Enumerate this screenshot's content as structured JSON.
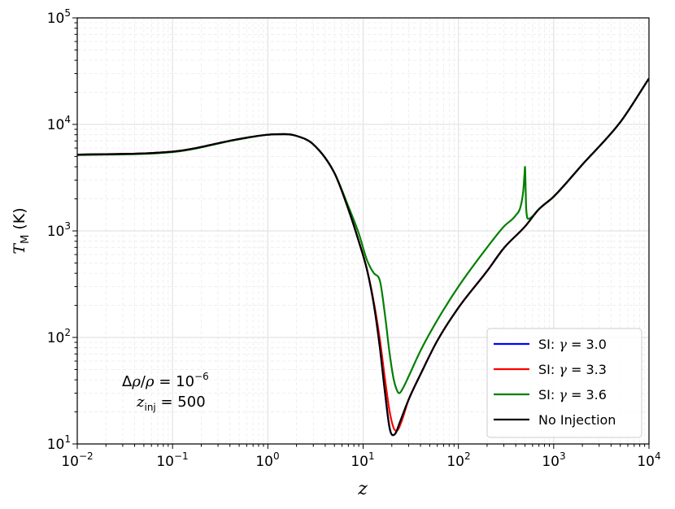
{
  "chart_data": {
    "type": "line",
    "title": "",
    "xlabel": "z",
    "ylabel": "T_M (K)",
    "x_scale": "log",
    "y_scale": "log",
    "xlim": [
      0.01,
      10000
    ],
    "ylim": [
      10,
      100000
    ],
    "grid": true,
    "legend_position": "lower-right",
    "x_tick_labels": [
      "10^-2",
      "10^-1",
      "10^0",
      "10^1",
      "10^2",
      "10^3",
      "10^4"
    ],
    "y_tick_labels": [
      "10^1",
      "10^2",
      "10^3",
      "10^4",
      "10^5"
    ],
    "annotations": [
      "Δρ/ρ = 10^-6",
      "z_inj = 500"
    ],
    "series": [
      {
        "name": "SI: γ = 3.0",
        "color": "#0000ff",
        "points": [
          [
            0.01,
            5200
          ],
          [
            0.1,
            5550
          ],
          [
            0.5,
            7300
          ],
          [
            1.0,
            8000
          ],
          [
            1.5,
            8100
          ],
          [
            2.0,
            7800
          ],
          [
            3.0,
            6500
          ],
          [
            5.0,
            3500
          ],
          [
            7.0,
            1600
          ],
          [
            9.0,
            800
          ],
          [
            11.0,
            430
          ],
          [
            13.0,
            200
          ],
          [
            15.0,
            80
          ],
          [
            17.0,
            30
          ],
          [
            19.0,
            14
          ],
          [
            20.5,
            12.1
          ],
          [
            22.0,
            12.7
          ],
          [
            24.0,
            15.5
          ],
          [
            30.0,
            26
          ],
          [
            40.0,
            45
          ],
          [
            60.0,
            93
          ],
          [
            100.0,
            190
          ],
          [
            200.0,
            420
          ],
          [
            300.0,
            690
          ],
          [
            500.0,
            1100
          ],
          [
            700.0,
            1600
          ],
          [
            1000.0,
            2100
          ],
          [
            2000.0,
            4200
          ],
          [
            5000.0,
            10500
          ],
          [
            10000.0,
            27000
          ]
        ]
      },
      {
        "name": "SI: γ = 3.3",
        "color": "#ff0000",
        "points": [
          [
            0.01,
            5200
          ],
          [
            0.1,
            5550
          ],
          [
            0.5,
            7300
          ],
          [
            1.0,
            8000
          ],
          [
            1.5,
            8100
          ],
          [
            2.0,
            7800
          ],
          [
            3.0,
            6500
          ],
          [
            5.0,
            3500
          ],
          [
            7.0,
            1600
          ],
          [
            9.0,
            800
          ],
          [
            11.0,
            430
          ],
          [
            13.0,
            210
          ],
          [
            15.0,
            95
          ],
          [
            17.0,
            40
          ],
          [
            19.0,
            20
          ],
          [
            21.0,
            14
          ],
          [
            22.5,
            13.3
          ],
          [
            25.0,
            15.8
          ],
          [
            30.0,
            26
          ],
          [
            40.0,
            45
          ],
          [
            60.0,
            93
          ],
          [
            100.0,
            190
          ],
          [
            200.0,
            420
          ],
          [
            300.0,
            690
          ],
          [
            500.0,
            1100
          ],
          [
            700.0,
            1600
          ],
          [
            1000.0,
            2100
          ],
          [
            2000.0,
            4200
          ],
          [
            5000.0,
            10500
          ],
          [
            10000.0,
            27000
          ]
        ]
      },
      {
        "name": "SI: γ = 3.6",
        "color": "#008000",
        "points": [
          [
            0.01,
            5150
          ],
          [
            0.1,
            5500
          ],
          [
            0.5,
            7250
          ],
          [
            1.0,
            8000
          ],
          [
            1.5,
            8100
          ],
          [
            2.0,
            7800
          ],
          [
            3.0,
            6500
          ],
          [
            5.0,
            3500
          ],
          [
            7.0,
            1700
          ],
          [
            9.0,
            950
          ],
          [
            11.0,
            530
          ],
          [
            13.0,
            400
          ],
          [
            15.0,
            340
          ],
          [
            17.0,
            160
          ],
          [
            19.0,
            70
          ],
          [
            21.0,
            40
          ],
          [
            23.0,
            31
          ],
          [
            24.0,
            30
          ],
          [
            26.0,
            33
          ],
          [
            30.0,
            43
          ],
          [
            40.0,
            75
          ],
          [
            60.0,
            145
          ],
          [
            100.0,
            300
          ],
          [
            200.0,
            700
          ],
          [
            300.0,
            1100
          ],
          [
            400.0,
            1400
          ],
          [
            450.0,
            1700
          ],
          [
            480.0,
            2400
          ],
          [
            495.0,
            3500
          ],
          [
            500.0,
            4000
          ],
          [
            505.0,
            3000
          ],
          [
            515.0,
            1600
          ],
          [
            540.0,
            1300
          ],
          [
            700.0,
            1600
          ],
          [
            1000.0,
            2100
          ],
          [
            2000.0,
            4200
          ],
          [
            5000.0,
            10500
          ],
          [
            10000.0,
            27000
          ]
        ]
      },
      {
        "name": "No Injection",
        "color": "#000000",
        "points": [
          [
            0.01,
            5200
          ],
          [
            0.1,
            5550
          ],
          [
            0.5,
            7300
          ],
          [
            1.0,
            8000
          ],
          [
            1.5,
            8100
          ],
          [
            2.0,
            7800
          ],
          [
            3.0,
            6500
          ],
          [
            5.0,
            3500
          ],
          [
            7.0,
            1600
          ],
          [
            9.0,
            800
          ],
          [
            11.0,
            430
          ],
          [
            13.0,
            200
          ],
          [
            15.0,
            80
          ],
          [
            17.0,
            30
          ],
          [
            19.0,
            14
          ],
          [
            20.5,
            12.1
          ],
          [
            22.0,
            12.7
          ],
          [
            24.0,
            15.5
          ],
          [
            30.0,
            26
          ],
          [
            40.0,
            45
          ],
          [
            60.0,
            93
          ],
          [
            100.0,
            190
          ],
          [
            200.0,
            420
          ],
          [
            300.0,
            690
          ],
          [
            500.0,
            1100
          ],
          [
            700.0,
            1600
          ],
          [
            1000.0,
            2100
          ],
          [
            2000.0,
            4200
          ],
          [
            5000.0,
            10500
          ],
          [
            10000.0,
            27000
          ]
        ]
      }
    ]
  }
}
